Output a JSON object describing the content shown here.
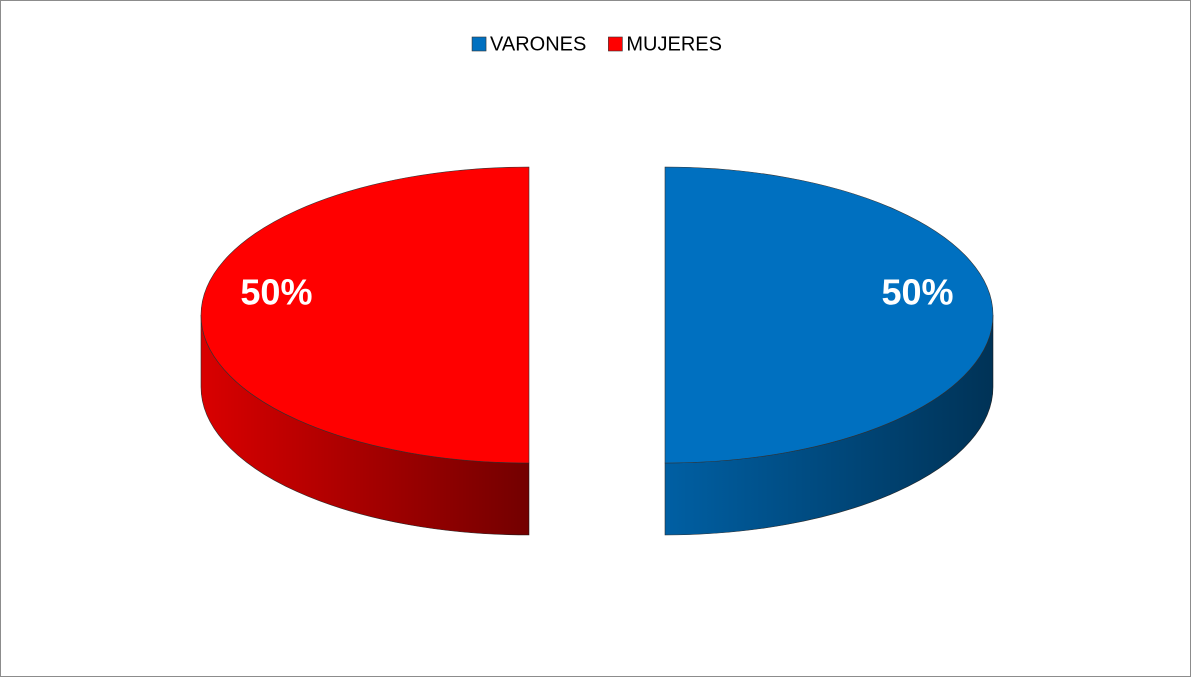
{
  "chart_data": {
    "type": "pie3d",
    "categories": [
      "VARONES",
      "MUJERES"
    ],
    "values": [
      50,
      50
    ],
    "value_labels": [
      "50%",
      "50%"
    ],
    "colors": [
      "#0070c0",
      "#ff0000"
    ],
    "legend": "top"
  }
}
